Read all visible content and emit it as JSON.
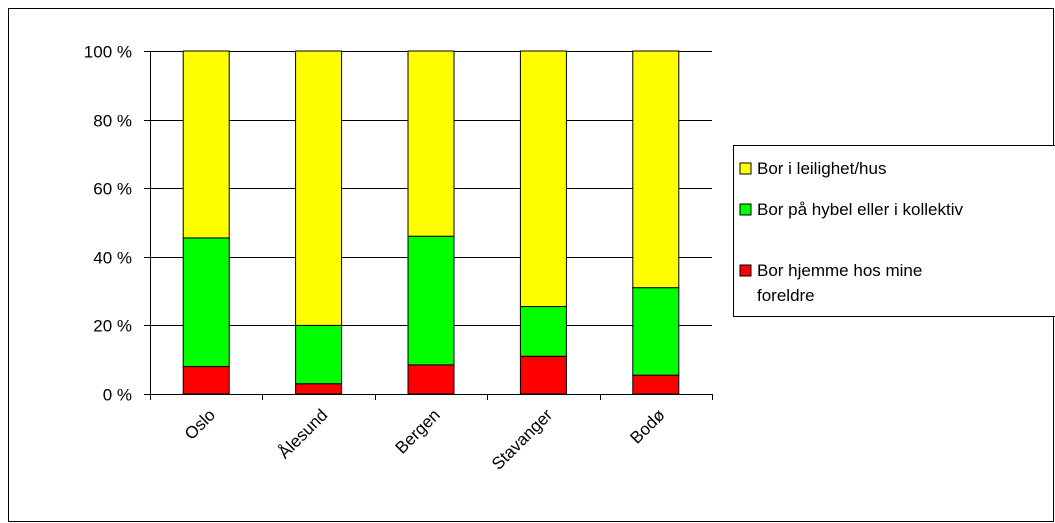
{
  "chart_data": {
    "type": "bar",
    "stacked": true,
    "categories": [
      "Oslo",
      "Ålesund",
      "Bergen",
      "Stavanger",
      "Bodø"
    ],
    "series": [
      {
        "name": "Bor hjemme hos mine foreldre",
        "label_lines": [
          "Bor hjemme hos mine",
          "foreldre"
        ],
        "color": "#ff0000",
        "values": [
          8,
          3,
          8.5,
          11,
          5.5
        ]
      },
      {
        "name": "Bor på hybel eller i kollektiv",
        "label_lines": [
          "Bor på hybel eller i kollektiv"
        ],
        "color": "#00ff00",
        "values": [
          37.5,
          17,
          37.5,
          14.5,
          25.5
        ]
      },
      {
        "name": "Bor i leilighet/hus",
        "label_lines": [
          "Bor i leilighet/hus"
        ],
        "color": "#ffff00",
        "values": [
          54.5,
          80,
          54,
          74.5,
          69
        ]
      }
    ],
    "yticks": [
      "0 %",
      "20 %",
      "40 %",
      "60 %",
      "80 %",
      "100 %"
    ],
    "ylim": [
      0,
      100
    ],
    "legend_position": "right",
    "grid": true
  }
}
